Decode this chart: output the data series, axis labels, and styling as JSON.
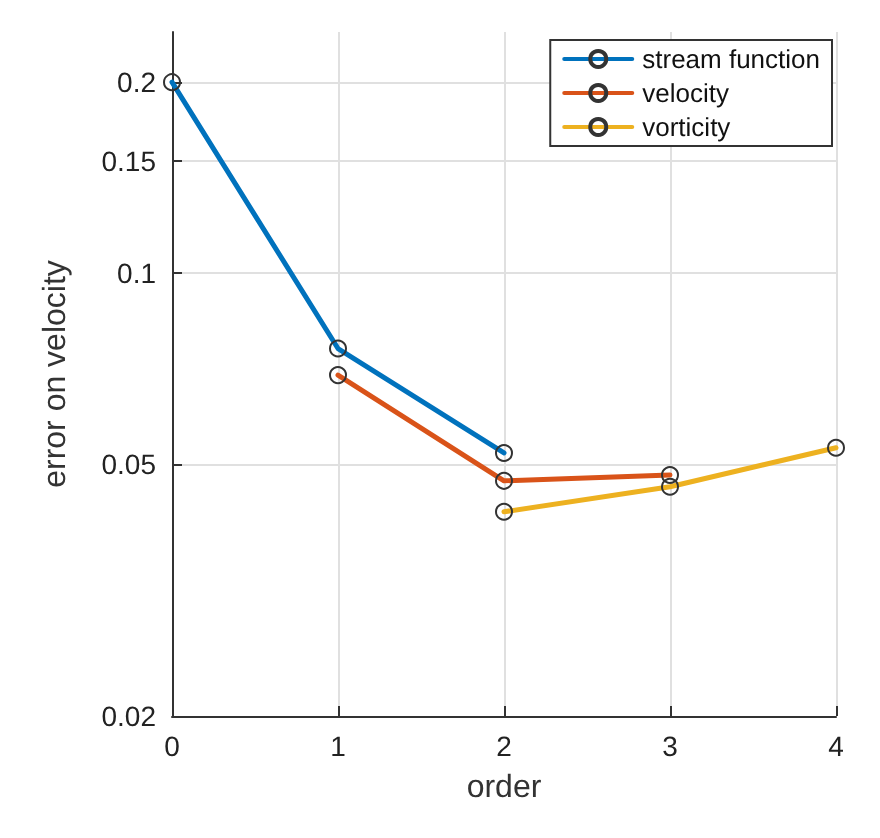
{
  "chart_data": {
    "type": "line",
    "xlabel": "order",
    "ylabel": "error on velocity",
    "x": [
      0,
      1,
      2,
      3,
      4
    ],
    "xlim": [
      0,
      4
    ],
    "xticks": [
      0,
      1,
      2,
      3,
      4
    ],
    "ylim": [
      0.02,
      0.24
    ],
    "yticks": [
      0.02,
      0.05,
      0.1,
      0.15,
      0.2
    ],
    "log": "y",
    "grid": true,
    "legend": "top right",
    "marker": "circle",
    "line_style": "solid",
    "series": [
      {
        "name": "stream function",
        "color": "#0072bd",
        "values": [
          0.2,
          0.076,
          0.052,
          null,
          null
        ]
      },
      {
        "name": "velocity",
        "color": "#d95319",
        "values": [
          null,
          0.069,
          0.047,
          0.048,
          null
        ]
      },
      {
        "name": "vorticity",
        "color": "#edb120",
        "values": [
          null,
          null,
          0.042,
          0.046,
          0.053
        ]
      }
    ]
  }
}
